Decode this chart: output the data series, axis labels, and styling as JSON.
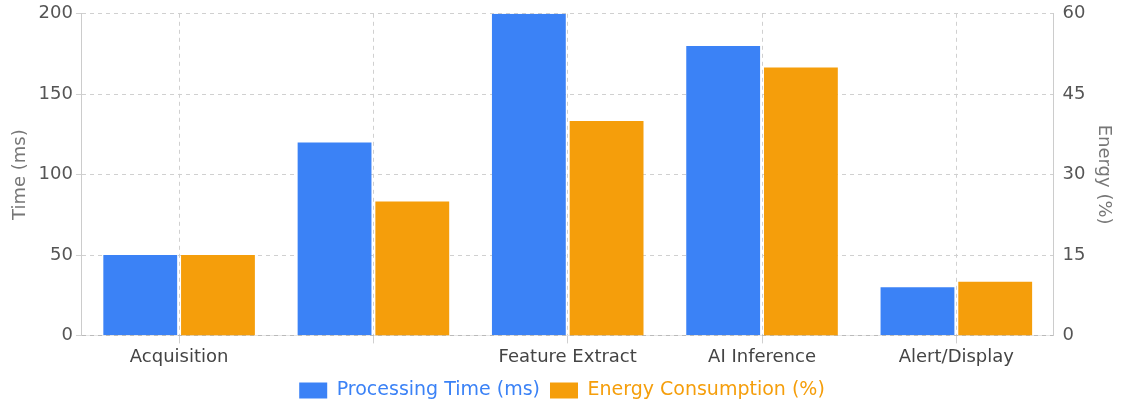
{
  "chart_data": {
    "type": "bar",
    "categories": [
      "Acquisition",
      null,
      "Feature Extract",
      "AI Inference",
      "Alert/Display"
    ],
    "ylabel": "Time (ms)",
    "y2label": "Energy (%)",
    "ylim": [
      0,
      200
    ],
    "yticks": [
      0,
      50,
      100,
      150,
      200
    ],
    "y2lim": [
      0,
      60
    ],
    "y2ticks": [
      0,
      15,
      30,
      45,
      60
    ],
    "series": [
      {
        "name": "Processing Time (ms)",
        "color": "#3b82f6",
        "values": [
          50,
          120,
          200,
          180,
          30
        ]
      },
      {
        "name": "Energy Consumption (%)",
        "color": "#f59e0b",
        "values": [
          15,
          25,
          40,
          50,
          10
        ],
        "axis": "y2"
      }
    ],
    "grid": true,
    "legend": "bottom"
  }
}
